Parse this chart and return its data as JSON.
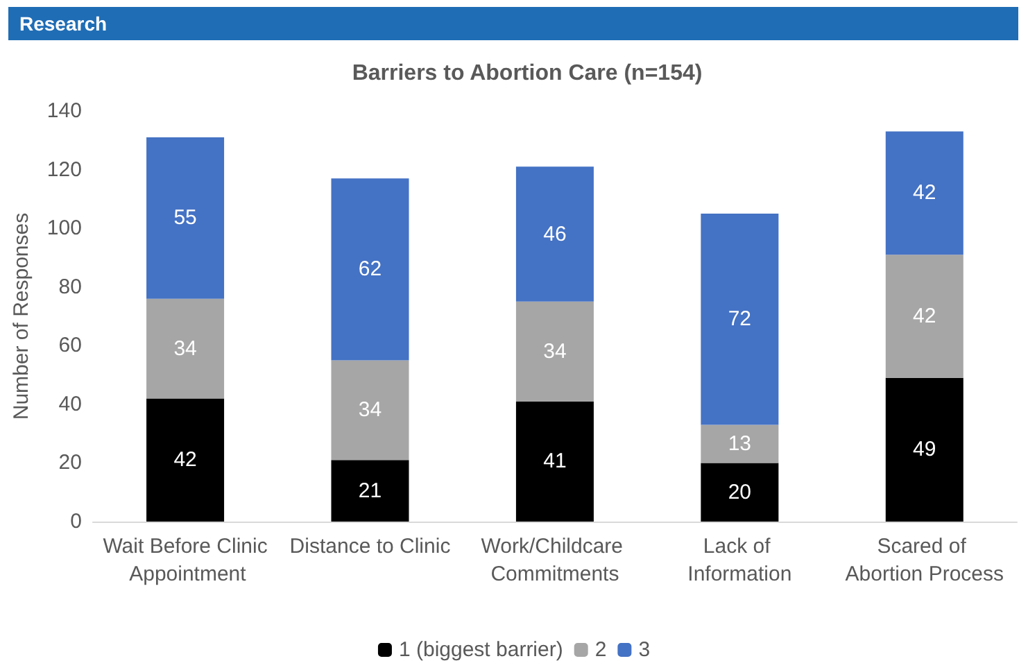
{
  "chart_data": {
    "type": "bar",
    "title": "Barriers to Abortion Care (n=154)",
    "ylabel": "Number of Responses",
    "annotations": [
      "Research"
    ],
    "categories": [
      "Wait Before Clinic Appointment",
      "Distance to Clinic",
      "Work/Childcare Commitments",
      "Lack of Information",
      "Scared of Abortion Process"
    ],
    "stacked": true,
    "series": [
      {
        "name": "1 (biggest barrier)",
        "color": "#000000",
        "values": [
          42,
          21,
          41,
          20,
          49
        ]
      },
      {
        "name": "2",
        "color": "#a6a6a6",
        "values": [
          34,
          34,
          34,
          13,
          42
        ]
      },
      {
        "name": "3",
        "color": "#4472c4",
        "values": [
          55,
          62,
          46,
          72,
          42
        ]
      }
    ],
    "ylim": [
      0,
      140
    ],
    "yticks": [
      0,
      20,
      40,
      60,
      80,
      100,
      120,
      140
    ],
    "data_labels": true,
    "grid": false,
    "legend": "bottom"
  }
}
